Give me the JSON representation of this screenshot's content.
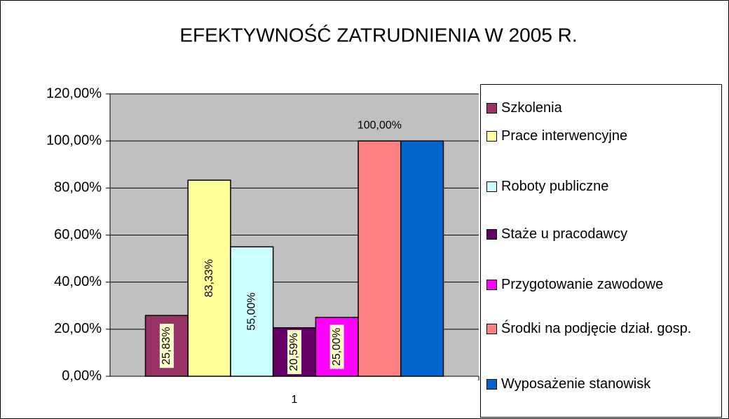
{
  "chart_data": {
    "type": "bar",
    "title": "EFEKTYWNOŚĆ ZATRUDNIENIA W 2005 R.",
    "categories": [
      "1"
    ],
    "series": [
      {
        "name": "Szkolenia",
        "color": "#993366",
        "values": [
          25.83
        ],
        "value_labels": [
          "25,83%"
        ]
      },
      {
        "name": "Prace interwencyjne",
        "color": "#FFFF99",
        "values": [
          83.33
        ],
        "value_labels": [
          "83,33%"
        ]
      },
      {
        "name": "Roboty publiczne",
        "color": "#CCFFFF",
        "values": [
          55.0
        ],
        "value_labels": [
          "55,00%"
        ]
      },
      {
        "name": "Staże u pracodawcy",
        "color": "#660066",
        "values": [
          20.59
        ],
        "value_labels": [
          "20,59%"
        ]
      },
      {
        "name": "Przygotowanie zawodowe",
        "color": "#FF00FF",
        "values": [
          25.0
        ],
        "value_labels": [
          "25,00%"
        ]
      },
      {
        "name": "Środki na podjęcie dział. gosp.",
        "color": "#FF8080",
        "values": [
          100.0
        ],
        "value_labels": [
          "100,00%"
        ],
        "label_position": "above"
      },
      {
        "name": "Wyposażenie stanowisk",
        "color": "#0066CC",
        "values": [
          100.0
        ]
      }
    ],
    "ylim": [
      0,
      120
    ],
    "yticks": [
      {
        "value": 0,
        "label": "0,00%"
      },
      {
        "value": 20,
        "label": "20,00%"
      },
      {
        "value": 40,
        "label": "40,00%"
      },
      {
        "value": 60,
        "label": "60,00%"
      },
      {
        "value": 80,
        "label": "80,00%"
      },
      {
        "value": 100,
        "label": "100,00%"
      },
      {
        "value": 120,
        "label": "120,00%"
      }
    ],
    "grid": true,
    "legend": "right",
    "plot_background": "#C0C0C0"
  }
}
